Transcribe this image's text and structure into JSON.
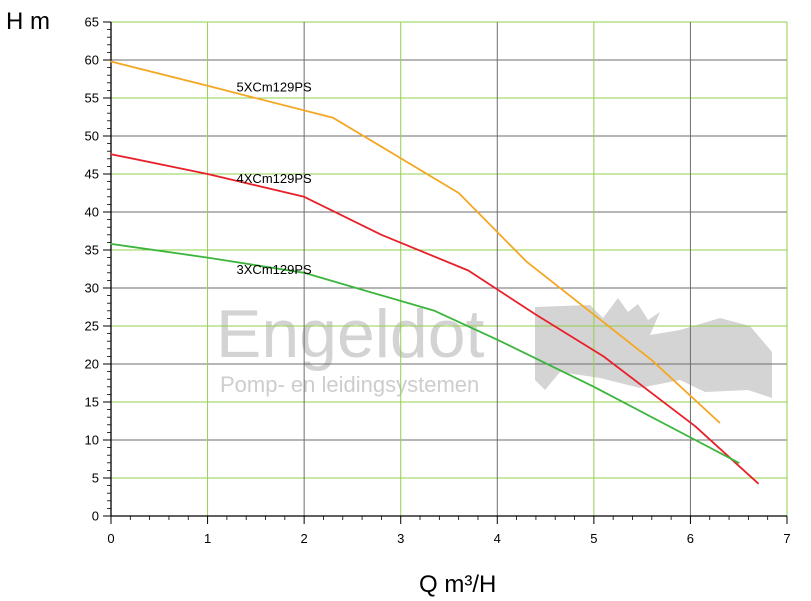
{
  "chart_data": {
    "type": "line",
    "xlabel": "Q m³/H",
    "ylabel": "H m",
    "xlim": [
      0,
      7
    ],
    "ylim": [
      0,
      65
    ],
    "x_ticks": [
      "0",
      "1",
      "2",
      "3",
      "4",
      "5",
      "6",
      "7"
    ],
    "y_ticks": [
      "0",
      "5",
      "10",
      "15",
      "20",
      "25",
      "30",
      "35",
      "40",
      "45",
      "50",
      "55",
      "60",
      "65"
    ],
    "grid": true,
    "colors": {
      "grid_major": "#6e6e6e",
      "grid_minor": "#92d050",
      "series_5x": "#f5a623",
      "series_4x": "#e8202a",
      "series_3x": "#3cb53c",
      "watermark": "#cfcfcf"
    },
    "watermark": {
      "title": "Engeldot",
      "subtitle": "Pomp- en leidingsystemen"
    },
    "series": [
      {
        "name": "5XCm129PS",
        "color": "#f5a623",
        "points": [
          [
            0,
            59.8
          ],
          [
            1,
            56.6
          ],
          [
            2.3,
            52.4
          ],
          [
            3.6,
            42.5
          ],
          [
            4.3,
            33.5
          ],
          [
            5.1,
            25.5
          ],
          [
            5.6,
            20.5
          ],
          [
            6.3,
            12.3
          ]
        ]
      },
      {
        "name": "4XCm129PS",
        "color": "#e8202a",
        "points": [
          [
            0,
            47.6
          ],
          [
            1,
            45.0
          ],
          [
            2.0,
            42.0
          ],
          [
            2.8,
            37.0
          ],
          [
            3.7,
            32.3
          ],
          [
            4.4,
            26.5
          ],
          [
            5.1,
            21.0
          ],
          [
            6.05,
            11.8
          ],
          [
            6.7,
            4.3
          ]
        ]
      },
      {
        "name": "3XCm129PS",
        "color": "#3cb53c",
        "points": [
          [
            0,
            35.8
          ],
          [
            1,
            34.0
          ],
          [
            2.0,
            32.0
          ],
          [
            3.35,
            27.0
          ],
          [
            4.0,
            23.2
          ],
          [
            5.0,
            17.0
          ],
          [
            6.05,
            10.0
          ],
          [
            6.5,
            7.0
          ]
        ]
      }
    ],
    "series_label_positions": [
      [
        1.3,
        56.5
      ],
      [
        1.3,
        44.5
      ],
      [
        1.3,
        32.5
      ]
    ]
  }
}
